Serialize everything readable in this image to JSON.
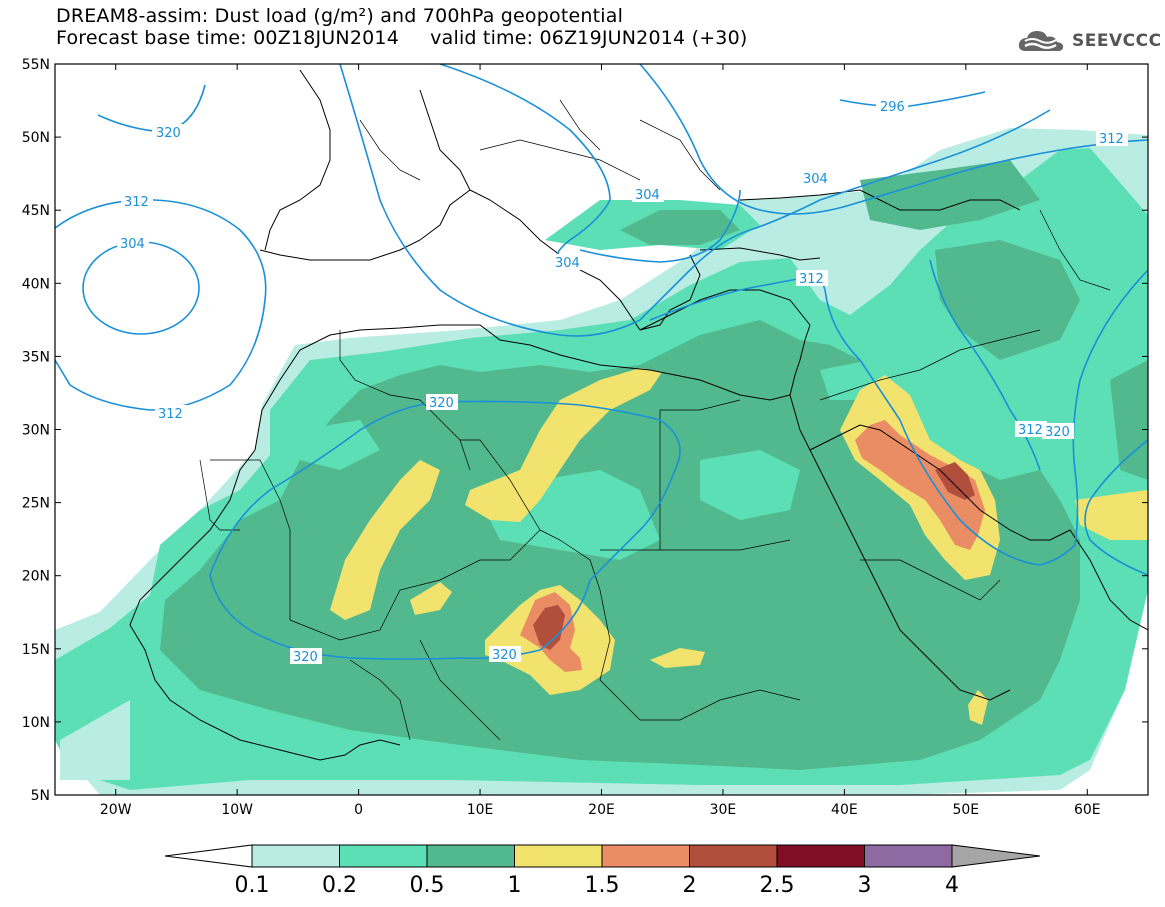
{
  "title": {
    "line1": "DREAM8-assim: Dust load (g/m²) and 700hPa geopotential",
    "line2": "Forecast base time: 00Z18JUN2014     valid time: 06Z19JUN2014 (+30)"
  },
  "logo": {
    "text": "SEEVCCC",
    "icon": "cloud-icon"
  },
  "map": {
    "lon_range": [
      -25,
      65
    ],
    "lat_range": [
      5,
      55
    ],
    "lon_ticks": [
      {
        "value": -20,
        "label": "20W"
      },
      {
        "value": -10,
        "label": "10W"
      },
      {
        "value": 0,
        "label": "0"
      },
      {
        "value": 10,
        "label": "10E"
      },
      {
        "value": 20,
        "label": "20E"
      },
      {
        "value": 30,
        "label": "30E"
      },
      {
        "value": 40,
        "label": "40E"
      },
      {
        "value": 50,
        "label": "50E"
      },
      {
        "value": 60,
        "label": "60E"
      }
    ],
    "lat_ticks": [
      {
        "value": 55,
        "label": "55N"
      },
      {
        "value": 50,
        "label": "50N"
      },
      {
        "value": 45,
        "label": "45N"
      },
      {
        "value": 40,
        "label": "40N"
      },
      {
        "value": 35,
        "label": "35N"
      },
      {
        "value": 30,
        "label": "30N"
      },
      {
        "value": 25,
        "label": "25N"
      },
      {
        "value": 20,
        "label": "20N"
      },
      {
        "value": 15,
        "label": "15N"
      },
      {
        "value": 10,
        "label": "10N"
      },
      {
        "value": 5,
        "label": "5N"
      }
    ],
    "contour_labels": [
      "320",
      "312",
      "304",
      "296",
      "304",
      "304",
      "312",
      "320",
      "312",
      "320",
      "320",
      "312",
      "312",
      "304"
    ],
    "contour_color": "#1a90d8"
  },
  "colorbar": {
    "levels": [
      "0.1",
      "0.2",
      "0.5",
      "1",
      "1.5",
      "2",
      "2.5",
      "3",
      "4"
    ],
    "colors": [
      "#ffffff",
      "#b9ede4",
      "#5ddfb6",
      "#52b98f",
      "#f2e36e",
      "#ea8c64",
      "#b14e3c",
      "#800f26",
      "#8d6aa1",
      "#a6a6a6"
    ]
  }
}
